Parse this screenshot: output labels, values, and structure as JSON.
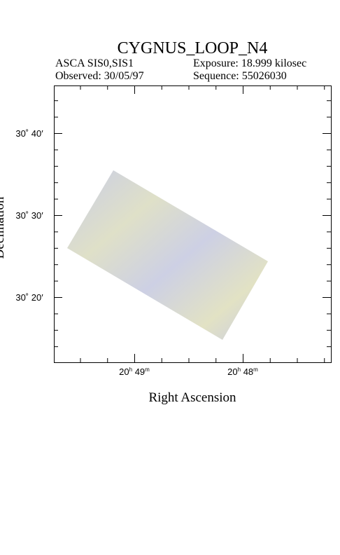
{
  "header": {
    "title": "CYGNUS_LOOP_N4",
    "instrument": "ASCA SIS0,SIS1",
    "exposure": "Exposure: 18.999 kilosec",
    "observed": "Observed: 30/05/97",
    "sequence": "Sequence: 55026030"
  },
  "axes": {
    "x_label": "Right Ascension",
    "y_label": "Declination",
    "y_ticks": [
      "30˚ 40′",
      "30˚ 30′",
      "30˚ 20′"
    ],
    "x_ticks": [
      {
        "hours": "20",
        "hour_unit": "h",
        "minutes": "49",
        "minute_unit": "m"
      },
      {
        "hours": "20",
        "hour_unit": "h",
        "minutes": "48",
        "minute_unit": "m"
      }
    ]
  }
}
